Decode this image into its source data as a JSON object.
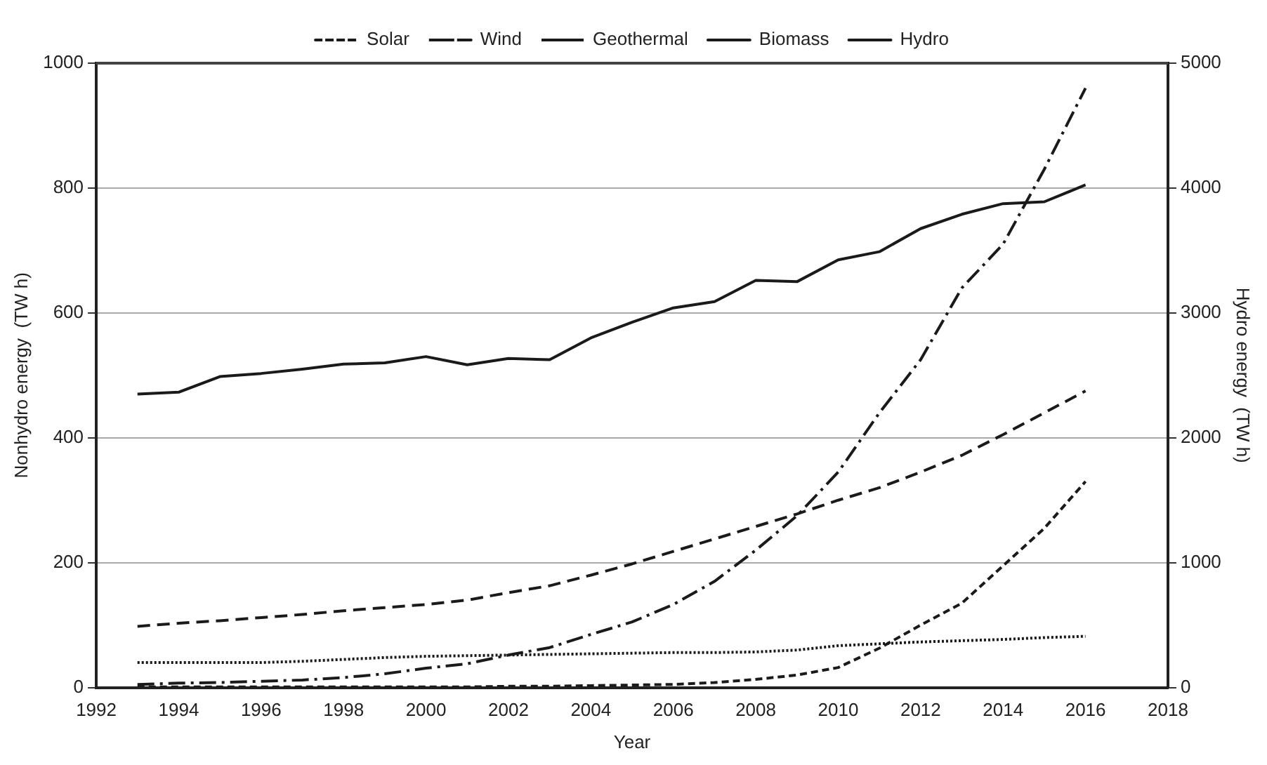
{
  "chart_data": {
    "type": "line",
    "xlabel": "Year",
    "ylabel": "Nonhydro energy  (TW h)",
    "y2label": "Hydro energy  (TW h)",
    "x": [
      1993,
      1994,
      1995,
      1996,
      1997,
      1998,
      1999,
      2000,
      2001,
      2002,
      2003,
      2004,
      2005,
      2006,
      2007,
      2008,
      2009,
      2010,
      2011,
      2012,
      2013,
      2014,
      2015,
      2016
    ],
    "series": [
      {
        "name": "Solar",
        "color": "#1a1a1a",
        "line_style": "dashed",
        "values": [
          1,
          1,
          1,
          1,
          1,
          1,
          1,
          1,
          1,
          2,
          2,
          3,
          4,
          5,
          8,
          13,
          20,
          32,
          63,
          100,
          135,
          195,
          255,
          330
        ]
      },
      {
        "name": "Wind",
        "color": "#1a1a1a",
        "line_style": "dashdot",
        "values": [
          5,
          7,
          8,
          10,
          12,
          16,
          22,
          31,
          38,
          52,
          64,
          85,
          105,
          133,
          170,
          220,
          275,
          345,
          440,
          525,
          640,
          710,
          830,
          960
        ]
      },
      {
        "name": "Geothermal",
        "color": "#1a1a1a",
        "line_style": "dotted",
        "values": [
          40,
          40,
          40,
          40,
          42,
          45,
          48,
          50,
          51,
          52,
          53,
          54,
          55,
          56,
          56,
          57,
          60,
          67,
          70,
          73,
          75,
          77,
          80,
          82
        ]
      },
      {
        "name": "Biomass",
        "color": "#1a1a1a",
        "line_style": "longdash",
        "values": [
          98,
          103,
          107,
          112,
          117,
          123,
          128,
          133,
          140,
          152,
          163,
          180,
          198,
          218,
          238,
          258,
          278,
          300,
          320,
          345,
          372,
          405,
          440,
          475
        ]
      },
      {
        "name": "Hydro",
        "color": "#1a1a1a",
        "line_style": "solid",
        "axis": "y2",
        "values": [
          2350,
          2365,
          2490,
          2515,
          2550,
          2590,
          2600,
          2650,
          2585,
          2635,
          2625,
          2800,
          2925,
          3040,
          3090,
          3260,
          3250,
          3425,
          3490,
          3675,
          3790,
          3875,
          3890,
          4025
        ]
      }
    ],
    "xlim": [
      1992,
      2018
    ],
    "xticks": [
      1992,
      1994,
      1996,
      1998,
      2000,
      2002,
      2004,
      2006,
      2008,
      2010,
      2012,
      2014,
      2016,
      2018
    ],
    "ylim": [
      0,
      1000
    ],
    "yticks": [
      0,
      200,
      400,
      600,
      800,
      1000
    ],
    "y2lim": [
      0,
      5000
    ],
    "y2ticks": [
      0,
      1000,
      2000,
      3000,
      4000,
      5000
    ],
    "grid": "y",
    "legend": "top",
    "marker": "none"
  }
}
